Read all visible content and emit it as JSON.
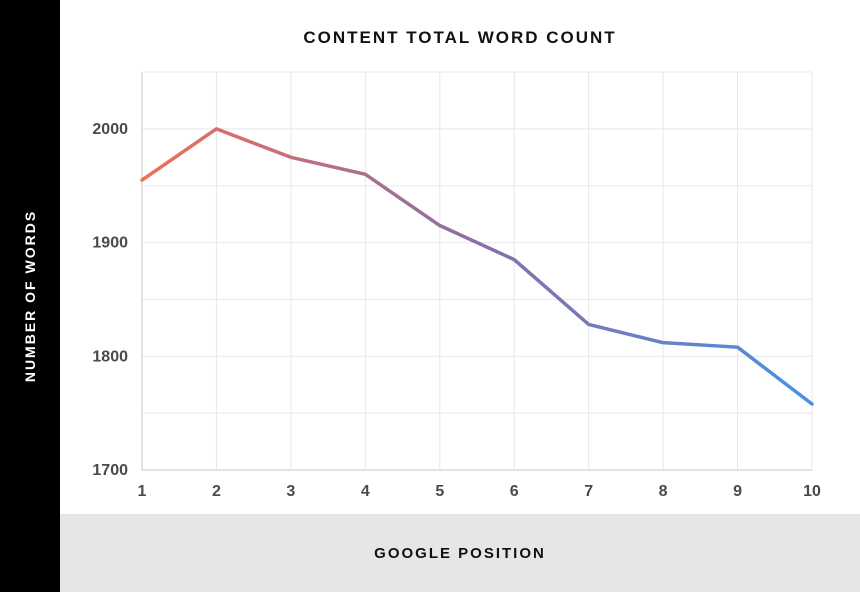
{
  "chart": {
    "type": "line",
    "title": "CONTENT TOTAL WORD COUNT",
    "y_label": "NUMBER OF WORDS",
    "x_label": "GOOGLE POSITION",
    "x_values": [
      1,
      2,
      3,
      4,
      5,
      6,
      7,
      8,
      9,
      10
    ],
    "y_values": [
      1955,
      2000,
      1975,
      1960,
      1915,
      1885,
      1828,
      1812,
      1808,
      1758
    ],
    "ylim": [
      1700,
      2050
    ],
    "y_ticks": [
      1700,
      1800,
      1900,
      2000
    ],
    "x_ticks": [
      1,
      2,
      3,
      4,
      5,
      6,
      7,
      8,
      9,
      10
    ],
    "line_gradient": {
      "start": "#ee6f57",
      "mid": "#8a6fa8",
      "end": "#4a90e2"
    },
    "line_width": 3.5,
    "grid_color": "#e8e8e8",
    "axis_color": "#c6c6c6",
    "background_color": "#ffffff",
    "left_rail_color": "#000000",
    "bottom_band_color": "#e6e6e6",
    "title_fontsize": 17,
    "title_weight": 800,
    "label_fontsize": 15,
    "label_weight": 800,
    "tick_fontsize": 16,
    "tick_color": "#4a4a4a",
    "grid_x_count": 10,
    "grid_y_count": 7
  }
}
